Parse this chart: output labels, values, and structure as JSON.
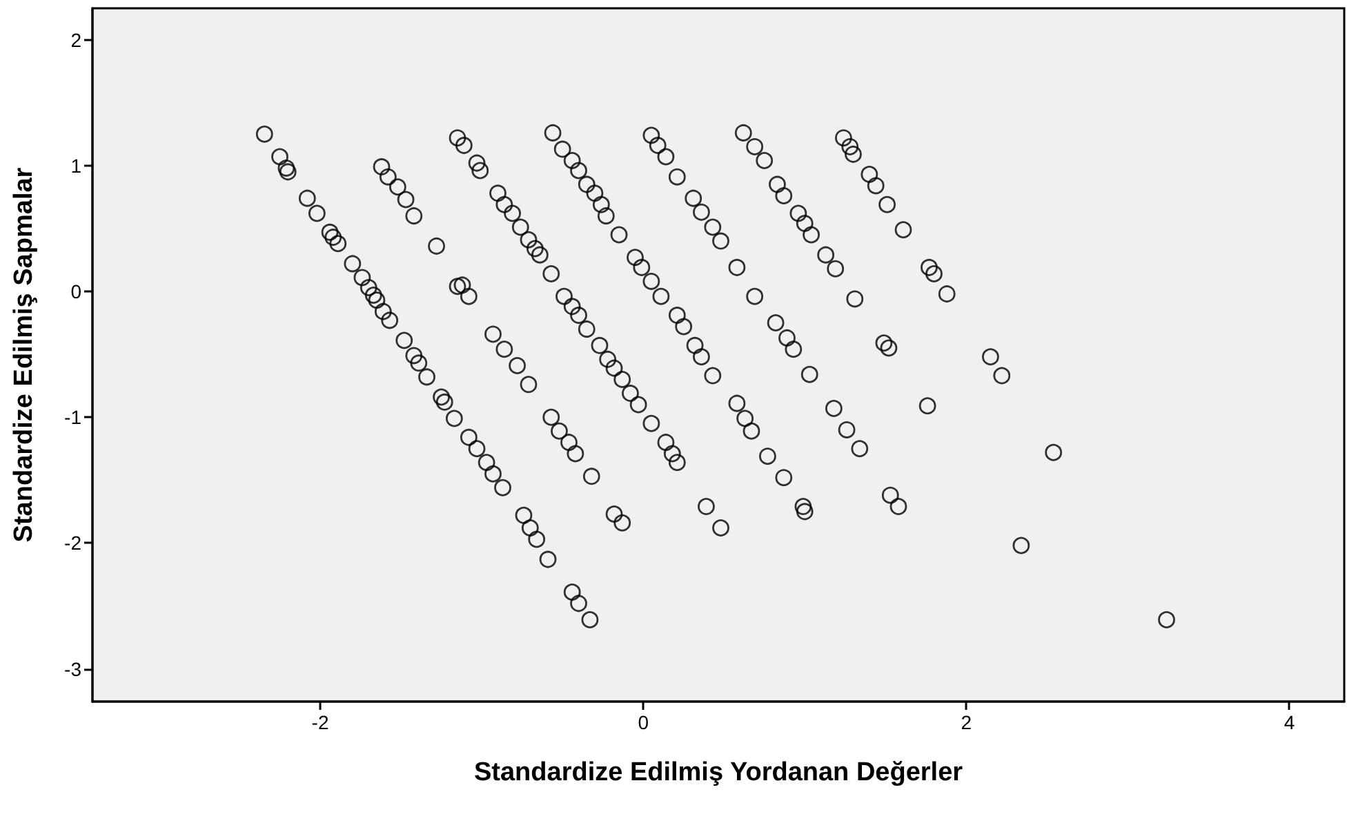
{
  "chart_data": {
    "type": "scatter",
    "xlabel": "Standardize Edilmiş Yordanan Değerler",
    "ylabel": "Standardize Edilmiş Sapmalar",
    "x": [
      -2.345,
      -2.25,
      -2.21,
      -2.2,
      -2.08,
      -2.02,
      -1.94,
      -1.92,
      -1.89,
      -1.8,
      -1.74,
      -1.7,
      -1.67,
      -1.65,
      -1.61,
      -1.57,
      -1.48,
      -1.42,
      -1.39,
      -1.34,
      -1.25,
      -1.23,
      -1.17,
      -1.08,
      -1.03,
      -0.97,
      -0.93,
      -0.87,
      -0.74,
      -0.7,
      -0.66,
      -0.59,
      -0.44,
      -0.4,
      -0.33,
      -1.62,
      -1.58,
      -1.52,
      -1.47,
      -1.42,
      -1.28,
      -1.15,
      -1.12,
      -1.08,
      -0.93,
      -0.86,
      -0.78,
      -0.71,
      -0.57,
      -0.52,
      -0.46,
      -0.42,
      -0.32,
      -0.18,
      -0.13,
      -1.15,
      -1.11,
      -1.03,
      -1.01,
      -0.9,
      -0.86,
      -0.81,
      -0.76,
      -0.71,
      -0.67,
      -0.64,
      -0.57,
      -0.49,
      -0.44,
      -0.4,
      -0.35,
      -0.27,
      -0.22,
      -0.18,
      -0.13,
      -0.08,
      -0.03,
      0.05,
      0.14,
      0.18,
      0.21,
      0.39,
      0.48,
      -0.56,
      -0.5,
      -0.44,
      -0.4,
      -0.35,
      -0.3,
      -0.26,
      -0.23,
      -0.15,
      -0.05,
      -0.01,
      0.05,
      0.11,
      0.21,
      0.25,
      0.32,
      0.36,
      0.43,
      0.58,
      0.63,
      0.67,
      0.77,
      0.87,
      0.99,
      1.0,
      0.05,
      0.09,
      0.14,
      0.21,
      0.31,
      0.36,
      0.43,
      0.48,
      0.58,
      0.69,
      0.82,
      0.89,
      0.93,
      1.03,
      1.18,
      1.26,
      1.34,
      1.53,
      1.58,
      0.62,
      0.69,
      0.75,
      0.83,
      0.87,
      0.96,
      1.0,
      1.04,
      1.13,
      1.19,
      1.31,
      1.49,
      1.52,
      1.76,
      1.24,
      1.28,
      1.3,
      1.4,
      1.44,
      1.51,
      1.61,
      1.77,
      1.8,
      1.88,
      2.15,
      2.22,
      2.54,
      2.34,
      3.24
    ],
    "values": [
      1.25,
      1.07,
      0.98,
      0.95,
      0.74,
      0.62,
      0.47,
      0.43,
      0.38,
      0.22,
      0.11,
      0.03,
      -0.03,
      -0.07,
      -0.16,
      -0.23,
      -0.39,
      -0.51,
      -0.57,
      -0.68,
      -0.84,
      -0.88,
      -1.01,
      -1.16,
      -1.25,
      -1.36,
      -1.45,
      -1.56,
      -1.78,
      -1.88,
      -1.97,
      -2.13,
      -2.39,
      -2.48,
      -2.61,
      0.99,
      0.91,
      0.83,
      0.73,
      0.6,
      0.36,
      0.04,
      0.05,
      -0.04,
      -0.34,
      -0.46,
      -0.59,
      -0.74,
      -1.0,
      -1.11,
      -1.2,
      -1.29,
      -1.47,
      -1.77,
      -1.84,
      1.22,
      1.16,
      1.02,
      0.96,
      0.78,
      0.69,
      0.62,
      0.51,
      0.41,
      0.34,
      0.29,
      0.14,
      -0.04,
      -0.12,
      -0.19,
      -0.3,
      -0.43,
      -0.54,
      -0.61,
      -0.7,
      -0.81,
      -0.9,
      -1.05,
      -1.2,
      -1.29,
      -1.36,
      -1.71,
      -1.88,
      1.26,
      1.13,
      1.04,
      0.96,
      0.85,
      0.78,
      0.69,
      0.6,
      0.45,
      0.27,
      0.19,
      0.08,
      -0.04,
      -0.19,
      -0.28,
      -0.43,
      -0.52,
      -0.67,
      -0.89,
      -1.01,
      -1.11,
      -1.31,
      -1.48,
      -1.71,
      -1.75,
      1.24,
      1.16,
      1.07,
      0.91,
      0.74,
      0.63,
      0.51,
      0.4,
      0.19,
      -0.04,
      -0.25,
      -0.37,
      -0.46,
      -0.66,
      -0.93,
      -1.1,
      -1.25,
      -1.62,
      -1.71,
      1.26,
      1.15,
      1.04,
      0.85,
      0.76,
      0.62,
      0.54,
      0.45,
      0.29,
      0.18,
      -0.06,
      -0.41,
      -0.45,
      -0.91,
      1.22,
      1.15,
      1.09,
      0.93,
      0.84,
      0.69,
      0.49,
      0.19,
      0.14,
      -0.02,
      -0.52,
      -0.67,
      -1.28,
      -2.02,
      -2.61
    ],
    "color": "#000000",
    "marker": "circle",
    "grid": false,
    "xlim": [
      -3.41,
      4.34
    ],
    "xticks": [
      -2,
      0,
      2,
      4
    ],
    "ylim": [
      -3.26,
      2.25
    ],
    "yticks": [
      -3,
      -2,
      -1,
      0,
      1,
      2
    ]
  }
}
